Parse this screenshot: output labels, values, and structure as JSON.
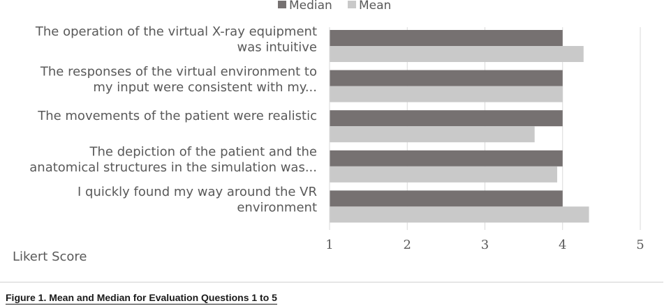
{
  "chart_data": {
    "type": "bar",
    "orientation": "horizontal",
    "categories": [
      [
        "The operation of the virtual X-ray equipment",
        "was intuitive"
      ],
      [
        "The responses of the virtual environment to",
        "my input were consistent with my..."
      ],
      [
        "The movements of the patient were realistic"
      ],
      [
        "The depiction of the patient and the",
        "anatomical structures in the simulation was..."
      ],
      [
        "I quickly found my way around the VR",
        "environment"
      ]
    ],
    "series": [
      {
        "name": "Median",
        "color": "#767171",
        "values": [
          4,
          4,
          4,
          4,
          4
        ]
      },
      {
        "name": "Mean",
        "color": "#c9c9c9",
        "values": [
          4.27,
          4.0,
          3.64,
          3.93,
          4.34
        ]
      }
    ],
    "xlim": [
      1,
      5
    ],
    "xticks": [
      "1",
      "2",
      "3",
      "4",
      "5"
    ],
    "xlabel": "Likert Score",
    "grid": true,
    "legend": "top"
  },
  "caption": "Figure 1. Mean and Median for Evaluation Questions 1 to 5"
}
